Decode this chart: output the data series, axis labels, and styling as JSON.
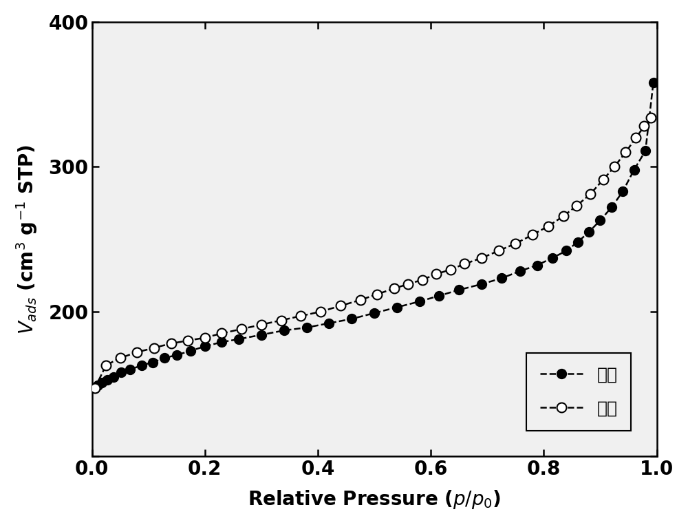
{
  "adsorption_x": [
    0.005,
    0.01,
    0.018,
    0.027,
    0.038,
    0.052,
    0.068,
    0.088,
    0.108,
    0.128,
    0.15,
    0.175,
    0.2,
    0.23,
    0.26,
    0.3,
    0.34,
    0.38,
    0.42,
    0.46,
    0.5,
    0.54,
    0.58,
    0.615,
    0.65,
    0.69,
    0.725,
    0.758,
    0.788,
    0.815,
    0.84,
    0.86,
    0.88,
    0.9,
    0.92,
    0.94,
    0.96,
    0.98,
    0.994
  ],
  "adsorption_y": [
    147,
    149,
    151,
    153,
    155,
    158,
    160,
    163,
    165,
    168,
    170,
    173,
    176,
    179,
    181,
    184,
    187,
    189,
    192,
    195,
    199,
    203,
    207,
    211,
    215,
    219,
    223,
    228,
    232,
    237,
    242,
    248,
    255,
    263,
    272,
    283,
    298,
    311,
    358
  ],
  "desorption_x": [
    0.005,
    0.025,
    0.05,
    0.08,
    0.11,
    0.14,
    0.17,
    0.2,
    0.23,
    0.265,
    0.3,
    0.335,
    0.37,
    0.405,
    0.44,
    0.475,
    0.505,
    0.535,
    0.56,
    0.585,
    0.61,
    0.635,
    0.66,
    0.69,
    0.72,
    0.75,
    0.78,
    0.808,
    0.835,
    0.858,
    0.882,
    0.905,
    0.925,
    0.945,
    0.963,
    0.978,
    0.99
  ],
  "desorption_y": [
    147,
    163,
    168,
    172,
    175,
    178,
    180,
    182,
    185,
    188,
    191,
    194,
    197,
    200,
    204,
    208,
    212,
    216,
    219,
    222,
    226,
    229,
    233,
    237,
    242,
    247,
    253,
    259,
    266,
    273,
    281,
    291,
    300,
    310,
    320,
    328,
    334
  ],
  "xlim": [
    0.0,
    1.0
  ],
  "ylim": [
    100,
    400
  ],
  "yticks": [
    200,
    300,
    400
  ],
  "ytick_top": 400,
  "xticks": [
    0.0,
    0.2,
    0.4,
    0.6,
    0.8,
    1.0
  ],
  "xlabel": "Relative Pressure ($p/p_0$)",
  "ylabel_parts": [
    "V",
    "ads",
    " (cm",
    "3",
    " g",
    "−1",
    " STP)"
  ],
  "adsorption_label": "吸附",
  "desorption_label": "脱附",
  "line_color": "#000000",
  "markersize": 10,
  "linewidth": 1.8,
  "background_color": "#ffffff",
  "plot_bg_color": "#f0f0f0",
  "tick_fontsize": 20,
  "label_fontsize": 20,
  "legend_fontsize": 18
}
